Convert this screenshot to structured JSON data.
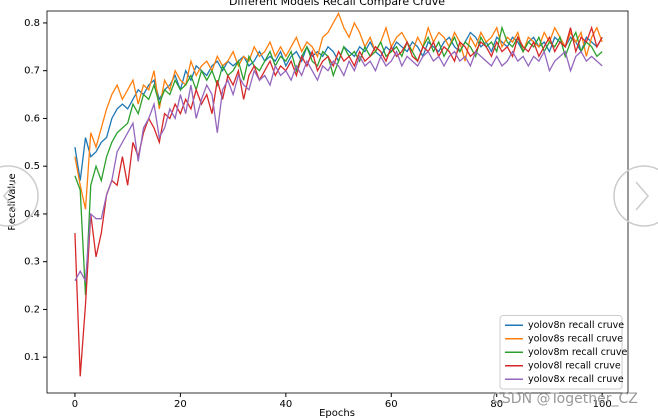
{
  "chart_data": {
    "type": "line",
    "title": "Different Models Recall Compare Cruve",
    "xlabel": "Epochs",
    "ylabel": "RecallValue",
    "watermark": "CSDN @Together_CZ",
    "x": [
      0,
      1,
      2,
      3,
      4,
      5,
      6,
      7,
      8,
      9,
      10,
      11,
      12,
      13,
      14,
      15,
      16,
      17,
      18,
      19,
      20,
      21,
      22,
      23,
      24,
      25,
      26,
      27,
      28,
      29,
      30,
      31,
      32,
      33,
      34,
      35,
      36,
      37,
      38,
      39,
      40,
      41,
      42,
      43,
      44,
      45,
      46,
      47,
      48,
      49,
      50,
      51,
      52,
      53,
      54,
      55,
      56,
      57,
      58,
      59,
      60,
      61,
      62,
      63,
      64,
      65,
      66,
      67,
      68,
      69,
      70,
      71,
      72,
      73,
      74,
      75,
      76,
      77,
      78,
      79,
      80,
      81,
      82,
      83,
      84,
      85,
      86,
      87,
      88,
      89,
      90,
      91,
      92,
      93,
      94,
      95,
      96,
      97,
      98,
      99,
      100
    ],
    "series": [
      {
        "name": "yolov8n recall cruve",
        "color": "#1f77b4",
        "values": [
          0.54,
          0.47,
          0.56,
          0.52,
          0.53,
          0.55,
          0.56,
          0.6,
          0.62,
          0.63,
          0.62,
          0.64,
          0.66,
          0.65,
          0.67,
          0.68,
          0.64,
          0.66,
          0.67,
          0.69,
          0.66,
          0.7,
          0.68,
          0.71,
          0.7,
          0.69,
          0.71,
          0.72,
          0.7,
          0.72,
          0.71,
          0.72,
          0.73,
          0.71,
          0.72,
          0.74,
          0.72,
          0.73,
          0.72,
          0.74,
          0.71,
          0.73,
          0.74,
          0.72,
          0.75,
          0.73,
          0.74,
          0.73,
          0.75,
          0.74,
          0.72,
          0.75,
          0.74,
          0.73,
          0.75,
          0.74,
          0.76,
          0.74,
          0.73,
          0.75,
          0.74,
          0.76,
          0.75,
          0.74,
          0.76,
          0.75,
          0.73,
          0.76,
          0.75,
          0.74,
          0.76,
          0.77,
          0.75,
          0.74,
          0.76,
          0.78,
          0.77,
          0.75,
          0.76,
          0.74,
          0.77,
          0.76,
          0.75,
          0.77,
          0.76,
          0.74,
          0.76,
          0.77,
          0.75,
          0.76,
          0.74,
          0.77,
          0.76,
          0.75,
          0.77,
          0.76,
          0.74,
          0.77,
          0.76,
          0.75,
          0.77
        ]
      },
      {
        "name": "yolov8s recall cruve",
        "color": "#ff7f0e",
        "values": [
          0.52,
          0.46,
          0.41,
          0.57,
          0.54,
          0.58,
          0.62,
          0.65,
          0.67,
          0.64,
          0.66,
          0.68,
          0.63,
          0.67,
          0.66,
          0.7,
          0.62,
          0.68,
          0.66,
          0.7,
          0.68,
          0.67,
          0.72,
          0.69,
          0.71,
          0.72,
          0.7,
          0.73,
          0.71,
          0.72,
          0.74,
          0.71,
          0.73,
          0.72,
          0.75,
          0.73,
          0.74,
          0.76,
          0.73,
          0.75,
          0.73,
          0.75,
          0.77,
          0.74,
          0.76,
          0.75,
          0.73,
          0.77,
          0.78,
          0.8,
          0.82,
          0.79,
          0.77,
          0.8,
          0.78,
          0.75,
          0.77,
          0.74,
          0.76,
          0.79,
          0.75,
          0.77,
          0.78,
          0.76,
          0.74,
          0.77,
          0.75,
          0.79,
          0.76,
          0.78,
          0.77,
          0.75,
          0.78,
          0.76,
          0.72,
          0.77,
          0.75,
          0.78,
          0.76,
          0.77,
          0.79,
          0.75,
          0.77,
          0.76,
          0.78,
          0.74,
          0.77,
          0.76,
          0.75,
          0.78,
          0.76,
          0.79,
          0.77,
          0.75,
          0.78,
          0.76,
          0.78,
          0.73,
          0.77,
          0.79,
          0.76
        ]
      },
      {
        "name": "yolov8m recall cruve",
        "color": "#2ca02c",
        "values": [
          0.48,
          0.45,
          0.23,
          0.46,
          0.5,
          0.47,
          0.52,
          0.55,
          0.57,
          0.58,
          0.59,
          0.63,
          0.61,
          0.65,
          0.64,
          0.67,
          0.63,
          0.66,
          0.65,
          0.68,
          0.66,
          0.67,
          0.69,
          0.66,
          0.7,
          0.68,
          0.7,
          0.67,
          0.71,
          0.69,
          0.7,
          0.72,
          0.68,
          0.73,
          0.71,
          0.7,
          0.72,
          0.74,
          0.71,
          0.73,
          0.72,
          0.74,
          0.7,
          0.73,
          0.75,
          0.72,
          0.71,
          0.74,
          0.73,
          0.69,
          0.72,
          0.75,
          0.73,
          0.74,
          0.72,
          0.75,
          0.73,
          0.74,
          0.76,
          0.73,
          0.74,
          0.75,
          0.73,
          0.76,
          0.74,
          0.72,
          0.75,
          0.77,
          0.74,
          0.76,
          0.73,
          0.75,
          0.77,
          0.74,
          0.76,
          0.75,
          0.73,
          0.77,
          0.75,
          0.76,
          0.74,
          0.79,
          0.76,
          0.75,
          0.77,
          0.74,
          0.76,
          0.75,
          0.77,
          0.74,
          0.76,
          0.75,
          0.77,
          0.73,
          0.76,
          0.78,
          0.74,
          0.76,
          0.75,
          0.73,
          0.74
        ]
      },
      {
        "name": "yolov8l recall cruve",
        "color": "#d62728",
        "values": [
          0.36,
          0.06,
          0.21,
          0.4,
          0.31,
          0.36,
          0.44,
          0.47,
          0.46,
          0.52,
          0.46,
          0.55,
          0.52,
          0.57,
          0.6,
          0.58,
          0.55,
          0.61,
          0.6,
          0.63,
          0.61,
          0.64,
          0.62,
          0.66,
          0.63,
          0.65,
          0.61,
          0.68,
          0.64,
          0.69,
          0.67,
          0.7,
          0.64,
          0.69,
          0.71,
          0.68,
          0.7,
          0.72,
          0.69,
          0.71,
          0.7,
          0.72,
          0.69,
          0.73,
          0.71,
          0.74,
          0.7,
          0.72,
          0.73,
          0.71,
          0.74,
          0.72,
          0.73,
          0.71,
          0.74,
          0.72,
          0.73,
          0.75,
          0.74,
          0.72,
          0.75,
          0.73,
          0.74,
          0.76,
          0.73,
          0.72,
          0.75,
          0.74,
          0.76,
          0.73,
          0.75,
          0.74,
          0.72,
          0.76,
          0.75,
          0.73,
          0.74,
          0.76,
          0.75,
          0.73,
          0.76,
          0.74,
          0.75,
          0.73,
          0.77,
          0.75,
          0.74,
          0.76,
          0.73,
          0.75,
          0.77,
          0.74,
          0.76,
          0.75,
          0.79,
          0.74,
          0.77,
          0.76,
          0.79,
          0.75,
          0.77
        ]
      },
      {
        "name": "yolov8x recall cruve",
        "color": "#9467bd",
        "values": [
          0.26,
          0.28,
          0.26,
          0.4,
          0.39,
          0.39,
          0.44,
          0.47,
          0.53,
          0.55,
          0.57,
          0.59,
          0.51,
          0.58,
          0.6,
          0.63,
          0.56,
          0.58,
          0.62,
          0.6,
          0.65,
          0.61,
          0.67,
          0.6,
          0.64,
          0.67,
          0.65,
          0.57,
          0.66,
          0.68,
          0.65,
          0.69,
          0.67,
          0.66,
          0.7,
          0.68,
          0.69,
          0.67,
          0.71,
          0.69,
          0.7,
          0.68,
          0.71,
          0.69,
          0.72,
          0.7,
          0.68,
          0.71,
          0.7,
          0.72,
          0.71,
          0.69,
          0.72,
          0.7,
          0.73,
          0.71,
          0.72,
          0.7,
          0.73,
          0.71,
          0.72,
          0.74,
          0.71,
          0.73,
          0.72,
          0.71,
          0.73,
          0.74,
          0.72,
          0.73,
          0.71,
          0.73,
          0.74,
          0.72,
          0.73,
          0.71,
          0.74,
          0.73,
          0.72,
          0.71,
          0.73,
          0.71,
          0.72,
          0.74,
          0.72,
          0.73,
          0.71,
          0.73,
          0.72,
          0.74,
          0.7,
          0.72,
          0.73,
          0.74,
          0.7,
          0.73,
          0.74,
          0.72,
          0.73,
          0.72,
          0.71
        ]
      }
    ],
    "xlim": [
      -5.3,
      104.9
    ],
    "ylim": [
      0.025,
      0.825
    ],
    "xticks": [
      0,
      20,
      40,
      60,
      80,
      100
    ],
    "yticks": [
      0.1,
      0.2,
      0.3,
      0.4,
      0.5,
      0.6,
      0.7,
      0.8
    ],
    "legend": "lower right",
    "grid": false
  }
}
